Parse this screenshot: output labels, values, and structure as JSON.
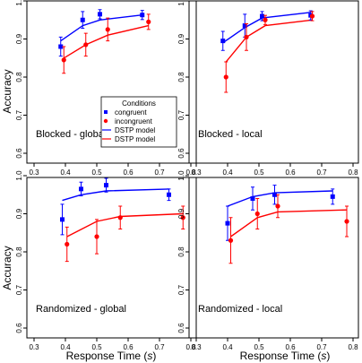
{
  "figure": {
    "ylabel": "Accuracy",
    "xlabel_prefix": "Response Time (",
    "xlabel_unit": "s",
    "xlabel_suffix": ")",
    "xticks": [
      "0.3",
      "0.4",
      "0.5",
      "0.6",
      "0.7",
      "0.8"
    ],
    "yticks": [
      "0.6",
      "0.7",
      "0.8",
      "0.9",
      "1.0"
    ],
    "colors": {
      "congruent": "#0000ff",
      "incongruent": "#ff0000",
      "axis": "#000000"
    },
    "legend": {
      "title": "Conditions",
      "entries": [
        {
          "label": "congruent",
          "kind": "marker-square",
          "color": "#0000ff"
        },
        {
          "label": "incongruent",
          "kind": "marker-circle",
          "color": "#ff0000"
        },
        {
          "label": "DSTP model",
          "kind": "line",
          "color": "#0000ff"
        },
        {
          "label": "DSTP model",
          "kind": "line",
          "color": "#ff0000"
        }
      ]
    }
  },
  "chart_data": [
    {
      "type": "scatter",
      "title": "Blocked - global",
      "xlim": [
        0.3,
        0.8
      ],
      "ylim": [
        0.6,
        1.0
      ],
      "series": [
        {
          "name": "congruent",
          "marker": "square",
          "points": [
            {
              "x": 0.385,
              "y": 0.88,
              "err": 0.025
            },
            {
              "x": 0.455,
              "y": 0.95,
              "err": 0.022
            },
            {
              "x": 0.51,
              "y": 0.965,
              "err": 0.012
            },
            {
              "x": 0.645,
              "y": 0.963,
              "err": 0.012
            }
          ]
        },
        {
          "name": "incongruent",
          "marker": "circle",
          "points": [
            {
              "x": 0.395,
              "y": 0.845,
              "err": 0.035
            },
            {
              "x": 0.465,
              "y": 0.885,
              "err": 0.03
            },
            {
              "x": 0.535,
              "y": 0.925,
              "err": 0.03
            },
            {
              "x": 0.665,
              "y": 0.945,
              "err": 0.02
            }
          ]
        },
        {
          "name": "DSTP model",
          "for": "congruent",
          "line": [
            [
              0.385,
              0.895
            ],
            [
              0.455,
              0.935
            ],
            [
              0.51,
              0.95
            ],
            [
              0.645,
              0.963
            ]
          ]
        },
        {
          "name": "DSTP model",
          "for": "incongruent",
          "line": [
            [
              0.395,
              0.85
            ],
            [
              0.465,
              0.885
            ],
            [
              0.535,
              0.91
            ],
            [
              0.665,
              0.935
            ]
          ]
        }
      ]
    },
    {
      "type": "scatter",
      "title": "Blocked - local",
      "xlim": [
        0.3,
        0.8
      ],
      "ylim": [
        0.6,
        1.0
      ],
      "series": [
        {
          "name": "congruent",
          "marker": "square",
          "points": [
            {
              "x": 0.385,
              "y": 0.895,
              "err": 0.025
            },
            {
              "x": 0.455,
              "y": 0.935,
              "err": 0.03
            },
            {
              "x": 0.51,
              "y": 0.96,
              "err": 0.012
            },
            {
              "x": 0.665,
              "y": 0.962,
              "err": 0.012
            }
          ]
        },
        {
          "name": "incongruent",
          "marker": "circle",
          "points": [
            {
              "x": 0.395,
              "y": 0.8,
              "err": 0.04
            },
            {
              "x": 0.46,
              "y": 0.905,
              "err": 0.035
            },
            {
              "x": 0.52,
              "y": 0.95,
              "err": 0.012
            },
            {
              "x": 0.67,
              "y": 0.96,
              "err": 0.012
            }
          ]
        },
        {
          "name": "DSTP model",
          "for": "congruent",
          "line": [
            [
              0.385,
              0.89
            ],
            [
              0.455,
              0.93
            ],
            [
              0.51,
              0.955
            ],
            [
              0.665,
              0.97
            ]
          ]
        },
        {
          "name": "DSTP model",
          "for": "incongruent",
          "line": [
            [
              0.395,
              0.84
            ],
            [
              0.46,
              0.905
            ],
            [
              0.52,
              0.935
            ],
            [
              0.67,
              0.95
            ]
          ]
        }
      ]
    },
    {
      "type": "scatter",
      "title": "Randomized - global",
      "xlim": [
        0.3,
        0.8
      ],
      "ylim": [
        0.6,
        1.0
      ],
      "series": [
        {
          "name": "congruent",
          "marker": "square",
          "points": [
            {
              "x": 0.39,
              "y": 0.885,
              "err": 0.04
            },
            {
              "x": 0.45,
              "y": 0.965,
              "err": 0.018
            },
            {
              "x": 0.53,
              "y": 0.975,
              "err": 0.018
            },
            {
              "x": 0.73,
              "y": 0.95,
              "err": 0.015
            }
          ]
        },
        {
          "name": "incongruent",
          "marker": "circle",
          "points": [
            {
              "x": 0.405,
              "y": 0.82,
              "err": 0.045
            },
            {
              "x": 0.5,
              "y": 0.84,
              "err": 0.045
            },
            {
              "x": 0.575,
              "y": 0.89,
              "err": 0.03
            },
            {
              "x": 0.775,
              "y": 0.89,
              "err": 0.03
            }
          ]
        },
        {
          "name": "DSTP model",
          "for": "congruent",
          "line": [
            [
              0.39,
              0.935
            ],
            [
              0.45,
              0.95
            ],
            [
              0.53,
              0.96
            ],
            [
              0.73,
              0.965
            ]
          ]
        },
        {
          "name": "DSTP model",
          "for": "incongruent",
          "line": [
            [
              0.405,
              0.84
            ],
            [
              0.5,
              0.88
            ],
            [
              0.575,
              0.893
            ],
            [
              0.775,
              0.9
            ]
          ]
        }
      ]
    },
    {
      "type": "scatter",
      "title": "Randomized - local",
      "xlim": [
        0.3,
        0.8
      ],
      "ylim": [
        0.6,
        1.0
      ],
      "series": [
        {
          "name": "congruent",
          "marker": "square",
          "points": [
            {
              "x": 0.4,
              "y": 0.875,
              "err": 0.045
            },
            {
              "x": 0.48,
              "y": 0.94,
              "err": 0.03
            },
            {
              "x": 0.55,
              "y": 0.95,
              "err": 0.025
            },
            {
              "x": 0.735,
              "y": 0.945,
              "err": 0.02
            }
          ]
        },
        {
          "name": "incongruent",
          "marker": "circle",
          "points": [
            {
              "x": 0.41,
              "y": 0.83,
              "err": 0.06
            },
            {
              "x": 0.495,
              "y": 0.9,
              "err": 0.04
            },
            {
              "x": 0.56,
              "y": 0.92,
              "err": 0.03
            },
            {
              "x": 0.78,
              "y": 0.88,
              "err": 0.04
            }
          ]
        },
        {
          "name": "DSTP model",
          "for": "congruent",
          "line": [
            [
              0.4,
              0.92
            ],
            [
              0.48,
              0.945
            ],
            [
              0.55,
              0.955
            ],
            [
              0.735,
              0.96
            ]
          ]
        },
        {
          "name": "DSTP model",
          "for": "incongruent",
          "line": [
            [
              0.41,
              0.84
            ],
            [
              0.495,
              0.89
            ],
            [
              0.56,
              0.905
            ],
            [
              0.78,
              0.91
            ]
          ]
        }
      ]
    }
  ]
}
